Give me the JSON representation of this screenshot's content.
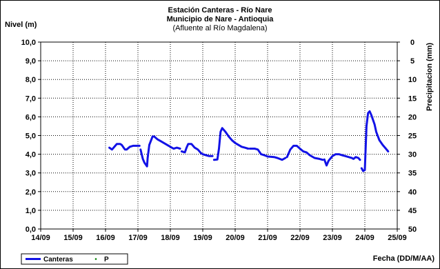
{
  "chart_data": {
    "type": "line",
    "title": "Estación Canteras - Río Nare",
    "title_line2": "Municipio de Nare - Antioquia",
    "subtitle": "(Afluente al Río Magdalena)",
    "ylabel": "Nivel (m)",
    "y2label": "Precipitacion (mm)",
    "xlabel": "Fecha (DD/M/AA)",
    "ylim": [
      0,
      10
    ],
    "y2lim": [
      0,
      50
    ],
    "y2_inverted": true,
    "xlim": [
      0,
      11
    ],
    "grid": true,
    "legend_position": "bottom-left",
    "x_ticks": [
      "14/09",
      "15/09",
      "16/09",
      "17/09",
      "18/09",
      "19/09",
      "20/09",
      "21/09",
      "22/09",
      "23/09",
      "24/09",
      "25/09"
    ],
    "y_ticks": [
      "0,0",
      "1,0",
      "2,0",
      "3,0",
      "4,0",
      "5,0",
      "6,0",
      "7,0",
      "8,0",
      "9,0",
      "10,0"
    ],
    "y2_ticks": [
      "0",
      "5",
      "10",
      "15",
      "20",
      "25",
      "30",
      "35",
      "40",
      "45",
      "50"
    ],
    "series": [
      {
        "name": "Canteras",
        "color": "#1212e6",
        "segments": [
          [
            [
              2.12,
              4.35
            ],
            [
              2.2,
              4.25
            ],
            [
              2.3,
              4.45
            ],
            [
              2.35,
              4.55
            ],
            [
              2.45,
              4.55
            ],
            [
              2.5,
              4.5
            ],
            [
              2.6,
              4.25
            ],
            [
              2.65,
              4.25
            ],
            [
              2.75,
              4.4
            ],
            [
              2.85,
              4.45
            ],
            [
              3.0,
              4.45
            ],
            [
              3.05,
              4.45
            ]
          ],
          [
            [
              3.08,
              4.25
            ],
            [
              3.15,
              3.75
            ],
            [
              3.2,
              3.55
            ],
            [
              3.28,
              3.35
            ],
            [
              3.3,
              3.8
            ],
            [
              3.35,
              4.5
            ],
            [
              3.45,
              4.95
            ],
            [
              3.5,
              4.95
            ],
            [
              3.6,
              4.8
            ],
            [
              3.7,
              4.7
            ],
            [
              3.8,
              4.6
            ],
            [
              3.9,
              4.5
            ],
            [
              4.0,
              4.4
            ],
            [
              4.1,
              4.3
            ],
            [
              4.2,
              4.35
            ],
            [
              4.3,
              4.3
            ]
          ],
          [
            [
              4.35,
              4.15
            ],
            [
              4.45,
              4.1
            ],
            [
              4.5,
              4.35
            ],
            [
              4.55,
              4.55
            ],
            [
              4.65,
              4.55
            ],
            [
              4.75,
              4.35
            ],
            [
              4.85,
              4.25
            ],
            [
              4.95,
              4.05
            ],
            [
              5.0,
              4.0
            ],
            [
              5.1,
              3.95
            ],
            [
              5.2,
              3.9
            ],
            [
              5.3,
              3.9
            ]
          ],
          [
            [
              5.35,
              3.7
            ],
            [
              5.45,
              3.72
            ],
            [
              5.5,
              4.3
            ],
            [
              5.55,
              5.2
            ],
            [
              5.6,
              5.4
            ],
            [
              5.7,
              5.2
            ],
            [
              5.8,
              4.95
            ],
            [
              5.9,
              4.75
            ],
            [
              6.0,
              4.6
            ],
            [
              6.1,
              4.5
            ],
            [
              6.2,
              4.4
            ],
            [
              6.3,
              4.35
            ],
            [
              6.4,
              4.3
            ]
          ],
          [
            [
              6.45,
              4.3
            ],
            [
              6.6,
              4.3
            ],
            [
              6.7,
              4.25
            ],
            [
              6.8,
              4.0
            ],
            [
              6.9,
              3.95
            ],
            [
              7.0,
              3.88
            ],
            [
              7.2,
              3.85
            ],
            [
              7.3,
              3.8
            ],
            [
              7.45,
              3.7
            ],
            [
              7.55,
              3.8
            ]
          ],
          [
            [
              7.6,
              3.85
            ],
            [
              7.7,
              4.25
            ],
            [
              7.8,
              4.45
            ],
            [
              7.9,
              4.45
            ],
            [
              8.0,
              4.3
            ],
            [
              8.1,
              4.15
            ],
            [
              8.2,
              4.1
            ],
            [
              8.3,
              3.95
            ],
            [
              8.45,
              3.8
            ],
            [
              8.6,
              3.75
            ],
            [
              8.7,
              3.7
            ]
          ],
          [
            [
              8.75,
              3.72
            ],
            [
              8.82,
              3.4
            ],
            [
              8.88,
              3.65
            ],
            [
              9.0,
              3.9
            ],
            [
              9.1,
              4.0
            ],
            [
              9.2,
              4.0
            ],
            [
              9.3,
              3.95
            ],
            [
              9.4,
              3.9
            ],
            [
              9.5,
              3.85
            ],
            [
              9.6,
              3.8
            ],
            [
              9.65,
              3.75
            ],
            [
              9.72,
              3.85
            ],
            [
              9.8,
              3.8
            ],
            [
              9.85,
              3.7
            ]
          ],
          [
            [
              9.9,
              3.25
            ],
            [
              9.95,
              3.1
            ],
            [
              10.0,
              3.15
            ],
            [
              10.05,
              5.5
            ],
            [
              10.1,
              6.2
            ],
            [
              10.15,
              6.3
            ],
            [
              10.2,
              6.1
            ],
            [
              10.3,
              5.6
            ],
            [
              10.35,
              5.2
            ],
            [
              10.45,
              4.75
            ],
            [
              10.55,
              4.5
            ],
            [
              10.65,
              4.3
            ],
            [
              10.72,
              4.15
            ]
          ]
        ]
      },
      {
        "name": "P",
        "color": "#008000",
        "values": []
      }
    ]
  }
}
